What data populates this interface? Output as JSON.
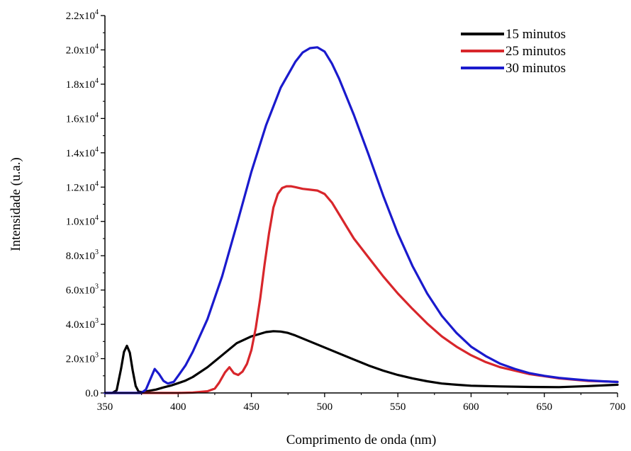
{
  "chart_data": {
    "type": "line",
    "xlabel": "Comprimento de onda (nm)",
    "ylabel": "Intensidade (u.a.)",
    "xlim": [
      350,
      700
    ],
    "ylim": [
      0,
      22000
    ],
    "grid": false,
    "legend_position": "top-right",
    "x_ticks": [
      {
        "value": 350,
        "label": "350"
      },
      {
        "value": 400,
        "label": "400"
      },
      {
        "value": 450,
        "label": "450"
      },
      {
        "value": 500,
        "label": "500"
      },
      {
        "value": 550,
        "label": "550"
      },
      {
        "value": 600,
        "label": "600"
      },
      {
        "value": 650,
        "label": "650"
      },
      {
        "value": 700,
        "label": "700"
      }
    ],
    "y_ticks": [
      {
        "value": 0,
        "mant": "0.0",
        "exp": ""
      },
      {
        "value": 2000,
        "mant": "2.0x10",
        "exp": "3"
      },
      {
        "value": 4000,
        "mant": "4.0x10",
        "exp": "3"
      },
      {
        "value": 6000,
        "mant": "6.0x10",
        "exp": "3"
      },
      {
        "value": 8000,
        "mant": "8.0x10",
        "exp": "3"
      },
      {
        "value": 10000,
        "mant": "1.0x10",
        "exp": "4"
      },
      {
        "value": 12000,
        "mant": "1.2x10",
        "exp": "4"
      },
      {
        "value": 14000,
        "mant": "1.4x10",
        "exp": "4"
      },
      {
        "value": 16000,
        "mant": "1.6x10",
        "exp": "4"
      },
      {
        "value": 18000,
        "mant": "1.8x10",
        "exp": "4"
      },
      {
        "value": 20000,
        "mant": "2.0x10",
        "exp": "4"
      },
      {
        "value": 22000,
        "mant": "2.2x10",
        "exp": "4"
      }
    ],
    "series": [
      {
        "name": "15 minutos",
        "color": "#000000",
        "x": [
          350,
          355,
          358,
          361,
          363,
          365,
          367,
          369,
          371,
          373,
          375,
          378,
          380,
          385,
          390,
          395,
          400,
          405,
          410,
          420,
          430,
          440,
          450,
          460,
          465,
          470,
          475,
          480,
          490,
          500,
          510,
          520,
          530,
          540,
          550,
          560,
          570,
          580,
          590,
          600,
          620,
          640,
          660,
          680,
          700
        ],
        "y": [
          0,
          0,
          150,
          1400,
          2400,
          2750,
          2350,
          1300,
          400,
          80,
          50,
          80,
          120,
          200,
          320,
          430,
          570,
          720,
          930,
          1500,
          2200,
          2900,
          3300,
          3550,
          3600,
          3580,
          3500,
          3350,
          3000,
          2650,
          2300,
          1950,
          1600,
          1300,
          1050,
          850,
          680,
          550,
          480,
          420,
          380,
          350,
          340,
          400,
          480
        ]
      },
      {
        "name": "25 minutos",
        "color": "#d8262b",
        "x": [
          350,
          400,
          410,
          420,
          425,
          428,
          432,
          435,
          438,
          441,
          444,
          447,
          450,
          453,
          456,
          459,
          462,
          465,
          468,
          471,
          474,
          477,
          480,
          485,
          490,
          495,
          500,
          505,
          510,
          515,
          520,
          530,
          540,
          550,
          560,
          570,
          580,
          590,
          600,
          610,
          620,
          640,
          660,
          680,
          700
        ],
        "y": [
          0,
          0,
          20,
          100,
          250,
          600,
          1200,
          1500,
          1150,
          1050,
          1250,
          1700,
          2500,
          3800,
          5500,
          7500,
          9300,
          10800,
          11600,
          11950,
          12050,
          12050,
          12000,
          11900,
          11850,
          11800,
          11600,
          11100,
          10400,
          9700,
          9000,
          7900,
          6800,
          5800,
          4900,
          4050,
          3300,
          2700,
          2200,
          1800,
          1500,
          1100,
          850,
          700,
          650
        ]
      },
      {
        "name": "30 minutos",
        "color": "#1a1acd",
        "x": [
          350,
          375,
          378,
          381,
          384,
          387,
          390,
          393,
          397,
          400,
          405,
          410,
          420,
          430,
          440,
          450,
          460,
          470,
          480,
          485,
          490,
          495,
          500,
          505,
          510,
          520,
          530,
          540,
          550,
          560,
          570,
          580,
          590,
          600,
          610,
          620,
          630,
          640,
          650,
          660,
          670,
          680,
          690,
          700
        ],
        "y": [
          0,
          0,
          200,
          800,
          1400,
          1100,
          700,
          550,
          650,
          1000,
          1600,
          2400,
          4300,
          6800,
          9800,
          12900,
          15600,
          17800,
          19300,
          19850,
          20100,
          20150,
          19900,
          19200,
          18300,
          16200,
          13900,
          11500,
          9300,
          7400,
          5800,
          4500,
          3500,
          2700,
          2150,
          1700,
          1400,
          1150,
          1000,
          880,
          800,
          730,
          680,
          640
        ]
      }
    ]
  }
}
